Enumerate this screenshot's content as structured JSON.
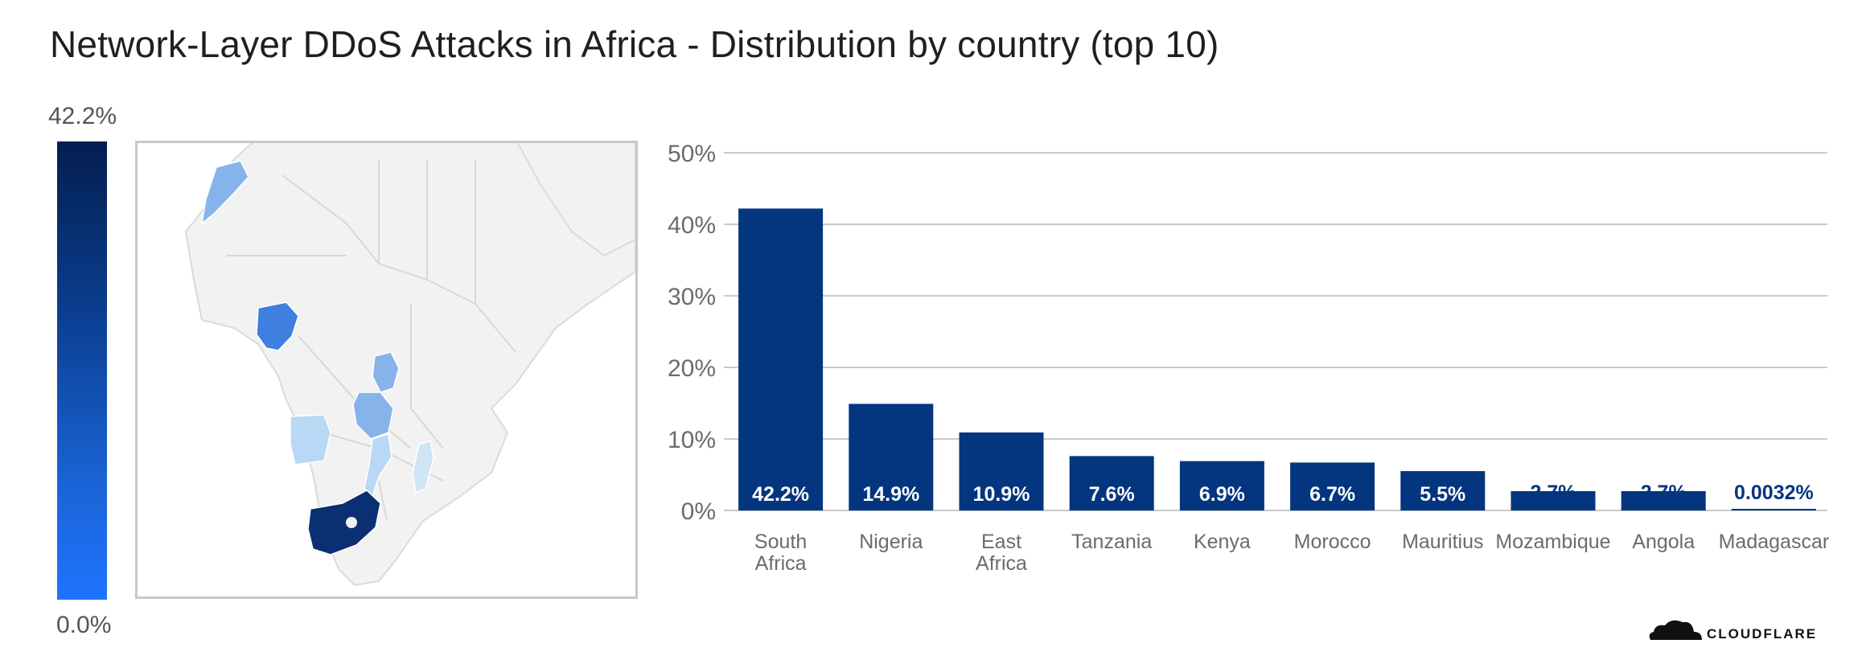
{
  "title": "Network-Layer DDoS Attacks in Africa - Distribution by country (top 10)",
  "legend": {
    "max_label": "42.2%",
    "min_label": "0.0%"
  },
  "colors": {
    "bar": "#04357f",
    "grid": "#c9c9c9",
    "legend_top": "#041e4f",
    "legend_bottom": "#1f73ff",
    "map_land": "#f2f2f2",
    "map_border": "#d8d8d8"
  },
  "map": {
    "region": "Africa",
    "highlighted": [
      {
        "country": "South Africa",
        "color": "#0b2f73"
      },
      {
        "country": "Nigeria",
        "color": "#3f7fe0"
      },
      {
        "country": "Kenya",
        "color": "#86b4ea"
      },
      {
        "country": "Tanzania",
        "color": "#86b4ea"
      },
      {
        "country": "Morocco",
        "color": "#86b4ea"
      },
      {
        "country": "Angola",
        "color": "#b9d8f5"
      },
      {
        "country": "Mozambique",
        "color": "#b9d8f5"
      },
      {
        "country": "Madagascar",
        "color": "#cfe6f7"
      }
    ]
  },
  "brand": {
    "logo_text": "CLOUDFLARE"
  },
  "chart_data": {
    "type": "bar",
    "title": "Network-Layer DDoS Attacks in Africa - Distribution by country (top 10)",
    "categories": [
      "South Africa",
      "Nigeria",
      "East Africa",
      "Tanzania",
      "Kenya",
      "Morocco",
      "Mauritius",
      "Mozambique",
      "Angola",
      "Madagascar"
    ],
    "category_lines": [
      [
        "South",
        "Africa"
      ],
      [
        "Nigeria"
      ],
      [
        "East",
        "Africa"
      ],
      [
        "Tanzania"
      ],
      [
        "Kenya"
      ],
      [
        "Morocco"
      ],
      [
        "Mauritius"
      ],
      [
        "Mozambique"
      ],
      [
        "Angola"
      ],
      [
        "Madagascar"
      ]
    ],
    "values": [
      42.2,
      14.9,
      10.9,
      7.6,
      6.9,
      6.7,
      5.5,
      2.7,
      2.7,
      0.0032
    ],
    "data_labels": [
      "42.2%",
      "14.9%",
      "10.9%",
      "7.6%",
      "6.9%",
      "6.7%",
      "5.5%",
      "2.7%",
      "2.7%",
      "0.0032%"
    ],
    "ylim": [
      0,
      50
    ],
    "yticks": [
      0,
      10,
      20,
      30,
      40,
      50
    ],
    "ytick_labels": [
      "0%",
      "10%",
      "20%",
      "30%",
      "40%",
      "50%"
    ],
    "grid": true,
    "xlabel": "",
    "ylabel": ""
  }
}
